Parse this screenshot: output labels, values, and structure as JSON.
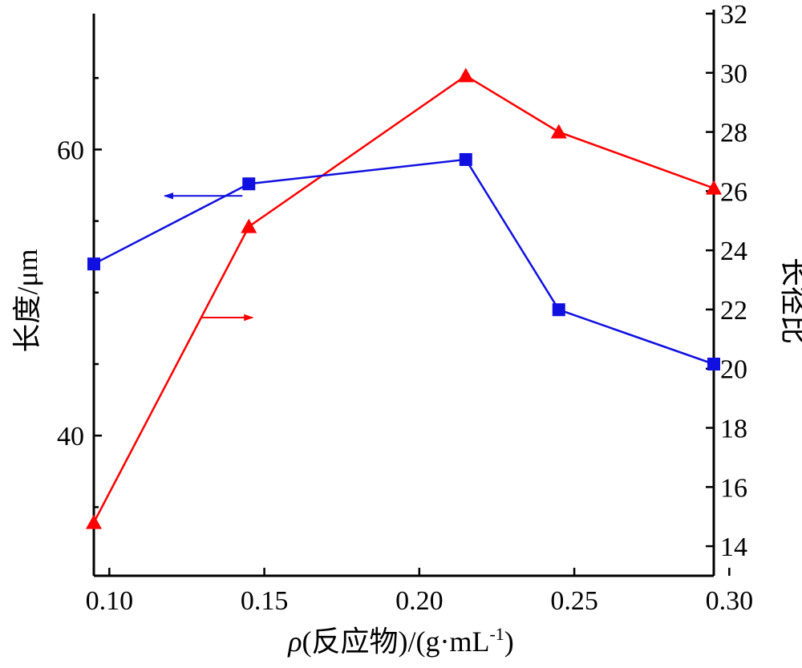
{
  "chart_data": {
    "type": "line",
    "xlabel_rho": "ρ",
    "xlabel_rest": "(反应物)/(g·mL",
    "xlabel_sup": "-1",
    "xlabel_close": ")",
    "ylabel_left": "长度/μm",
    "ylabel_right": "长径比",
    "x_ticks": [
      "0.10",
      "0.15",
      "0.20",
      "0.25",
      "0.30"
    ],
    "x_tick_values": [
      0.1,
      0.15,
      0.2,
      0.25,
      0.3
    ],
    "xlim": [
      0.095,
      0.295
    ],
    "y_left_ticks": [
      "40",
      "60"
    ],
    "y_left_tick_values": [
      40,
      60
    ],
    "ylim_left": [
      30.2,
      69.5
    ],
    "y_right_ticks": [
      "14",
      "16",
      "18",
      "20",
      "22",
      "24",
      "26",
      "28",
      "30",
      "32"
    ],
    "y_right_tick_values": [
      14,
      16,
      18,
      20,
      22,
      24,
      26,
      28,
      30,
      32
    ],
    "ylim_right": [
      13,
      32
    ],
    "x": [
      0.095,
      0.145,
      0.215,
      0.245,
      0.295
    ],
    "series": [
      {
        "axis": "left",
        "color": "#1010e0",
        "marker": "square",
        "values": [
          52.0,
          57.6,
          59.3,
          48.8,
          45.0
        ]
      },
      {
        "axis": "right",
        "color": "#ff0000",
        "marker": "triangle",
        "values": [
          14.8,
          24.8,
          29.9,
          28.0,
          26.1
        ]
      }
    ],
    "arrows": [
      {
        "series": 0,
        "direction": "left"
      },
      {
        "series": 1,
        "direction": "right"
      }
    ],
    "grid": false
  }
}
